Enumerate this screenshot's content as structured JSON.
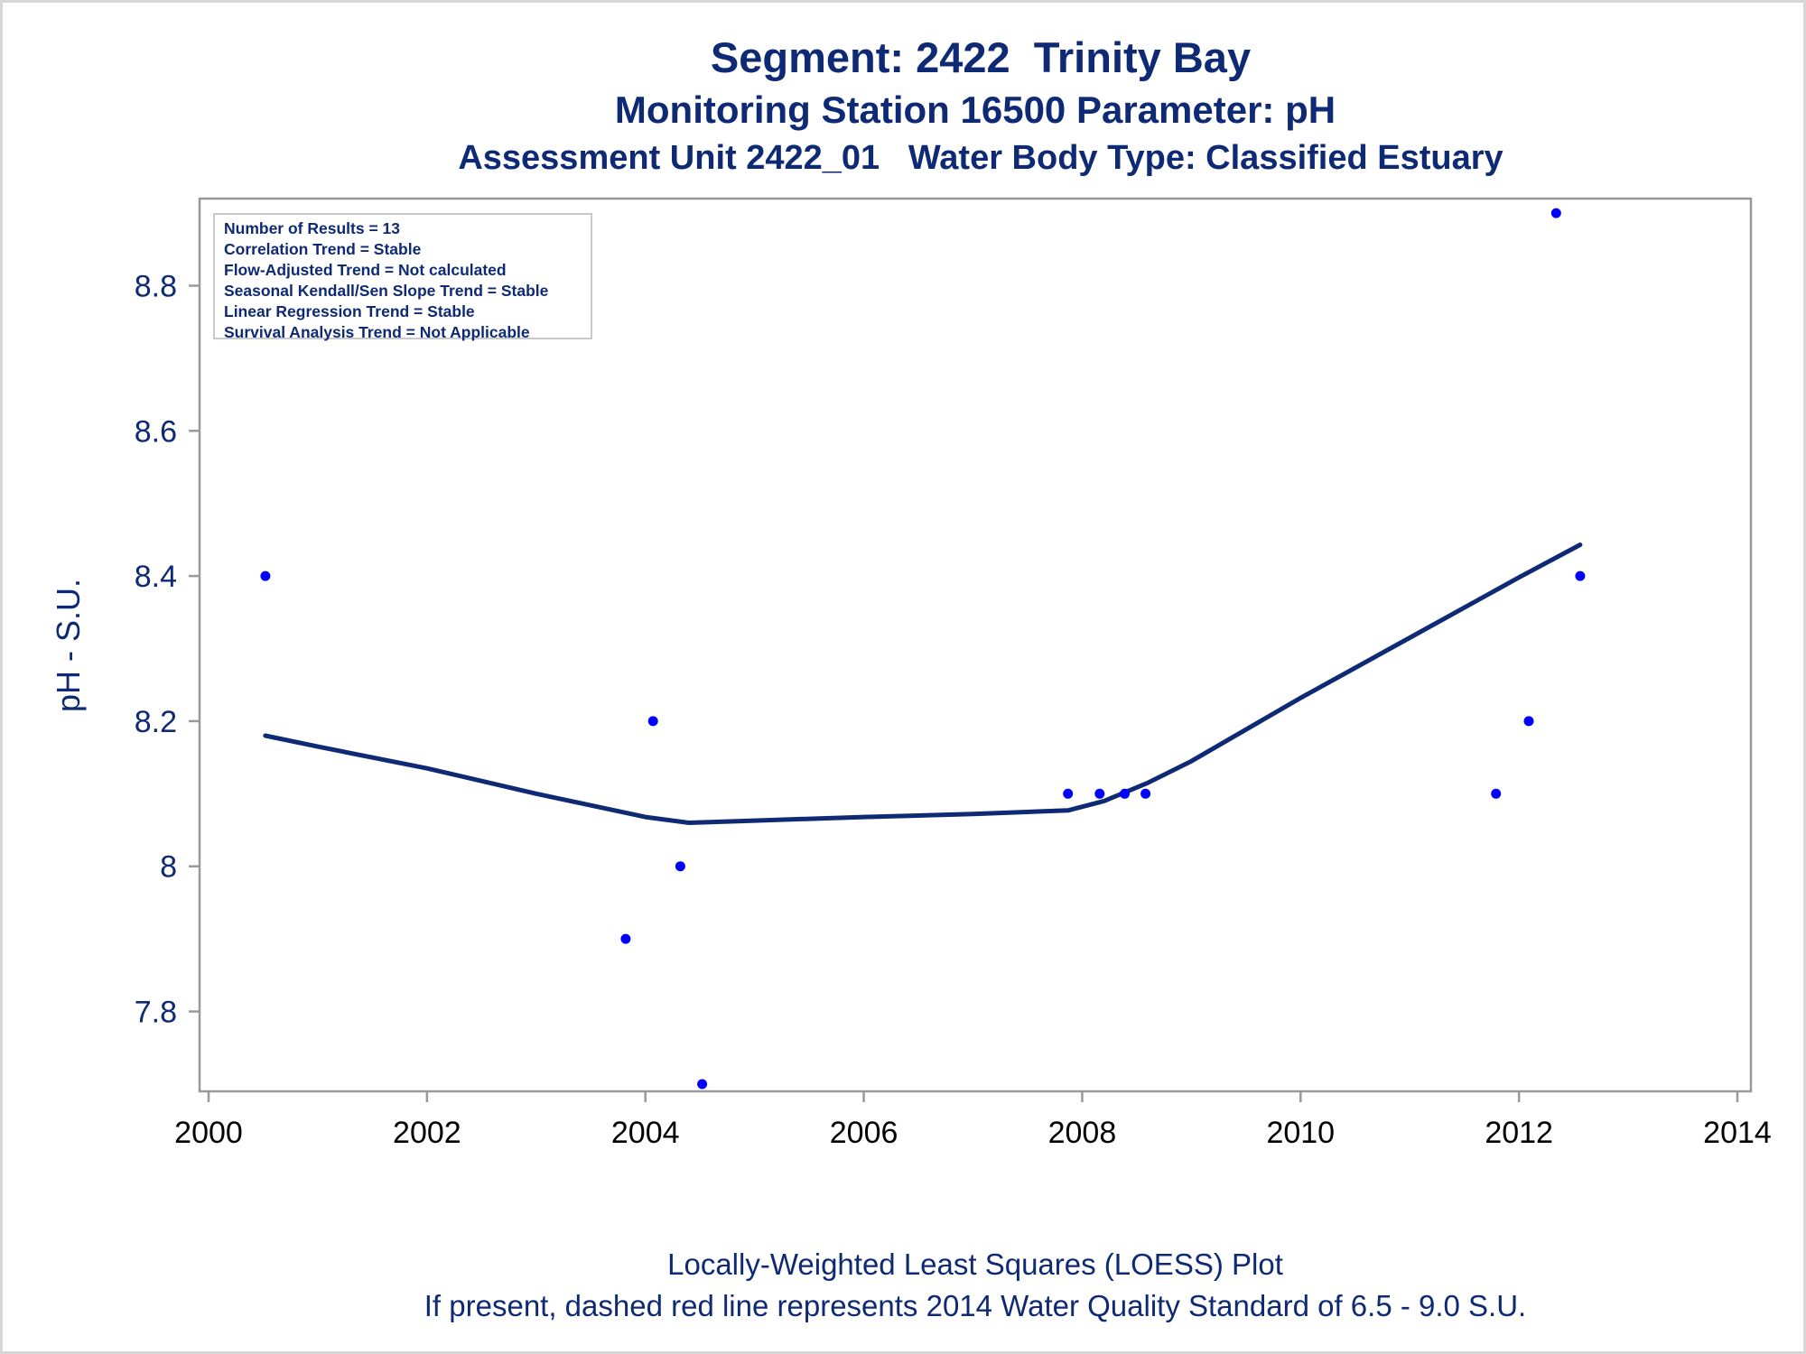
{
  "header": {
    "title": "Segment: 2422  Trinity Bay",
    "subtitle": "Monitoring Station 16500 Parameter: pH",
    "subtitle2": "Assessment Unit 2422_01   Water Body Type: Classified Estuary"
  },
  "stats": [
    "Number of Results = 13",
    "Correlation Trend = Stable",
    "Flow-Adjusted Trend = Not calculated",
    "Seasonal Kendall/Sen Slope Trend = Stable",
    "Linear Regression Trend = Stable",
    "Survival Analysis Trend = Not Applicable"
  ],
  "footer": {
    "line1": "Locally-Weighted Least Squares (LOESS) Plot",
    "line2": "If present, dashed red line represents 2014 Water Quality Standard of 6.5 - 9.0 S.U."
  },
  "colors": {
    "title": "#0f2a74",
    "points": "#0000ff",
    "loess": "#0f2a74",
    "axis": "#999999"
  },
  "chart_data": {
    "type": "scatter",
    "xlabel": "",
    "ylabel": "pH - S.U.",
    "xlim": [
      2000,
      2014
    ],
    "ylim": [
      7.69,
      8.92
    ],
    "x_ticks": [
      2000,
      2002,
      2004,
      2006,
      2008,
      2010,
      2012,
      2014
    ],
    "y_ticks": [
      7.8,
      8,
      8.2,
      8.4,
      8.6,
      8.8
    ],
    "y_tick_labels": [
      "7.8",
      "8",
      "8.2",
      "8.4",
      "8.6",
      "8.8"
    ],
    "grid": false,
    "series": [
      {
        "type": "scatter",
        "x": [
          2000.52,
          2003.82,
          2004.07,
          2004.32,
          2004.52,
          2007.87,
          2008.16,
          2008.39,
          2008.58,
          2011.79,
          2012.09,
          2012.34,
          2012.56
        ],
        "y": [
          8.4,
          7.9,
          8.2,
          8.0,
          7.7,
          8.1,
          8.1,
          8.1,
          8.1,
          8.1,
          8.2,
          8.9,
          8.4
        ]
      },
      {
        "type": "line",
        "x": [
          2000.52,
          2001.0,
          2002.0,
          2003.0,
          2004.0,
          2004.4,
          2005.0,
          2006.0,
          2007.0,
          2007.87,
          2008.2,
          2008.6,
          2009.0,
          2010.0,
          2011.0,
          2012.0,
          2012.56
        ],
        "y": [
          8.18,
          8.165,
          8.135,
          8.1,
          8.068,
          8.06,
          8.063,
          8.068,
          8.072,
          8.077,
          8.09,
          8.115,
          8.145,
          8.232,
          8.315,
          8.398,
          8.443
        ]
      }
    ]
  }
}
